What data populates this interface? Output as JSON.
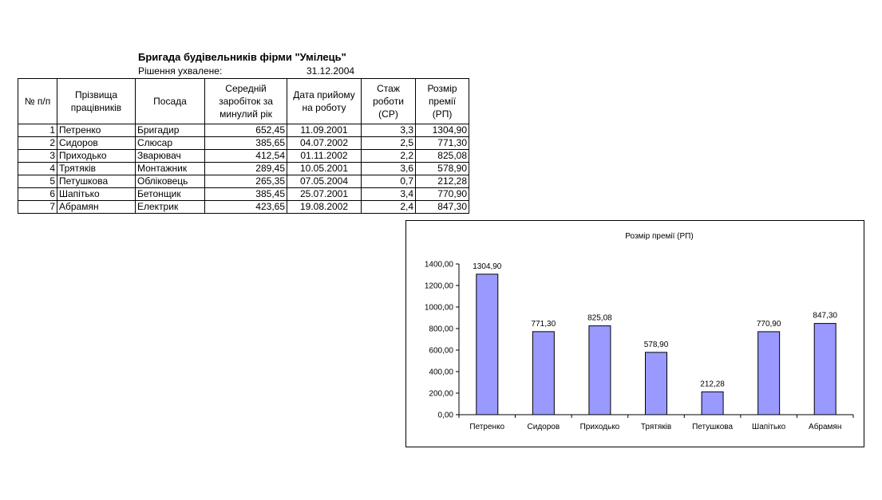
{
  "document": {
    "title": "Бригада будівельників фірми \"Умілець\"",
    "decision_label": "Рішення ухвалене:",
    "decision_date": "31.12.2004"
  },
  "table": {
    "headers": [
      "№ п/п",
      "Прізвища працівників",
      "Посада",
      "Середній заробіток за минулий рік",
      "Дата прийому на роботу",
      "Стаж роботи (СР)",
      "Розмір премії (РП)"
    ],
    "rows": [
      [
        "1",
        "Петренко",
        "Бригадир",
        "652,45",
        "11.09.2001",
        "3,3",
        "1304,90"
      ],
      [
        "2",
        "Сидоров",
        "Слюсар",
        "385,65",
        "04.07.2002",
        "2,5",
        "771,30"
      ],
      [
        "3",
        "Приходько",
        "Зварювач",
        "412,54",
        "01.11.2002",
        "2,2",
        "825,08"
      ],
      [
        "4",
        "Трятяків",
        "Монтажник",
        "289,45",
        "10.05.2001",
        "3,6",
        "578,90"
      ],
      [
        "5",
        "Петушкова",
        "Обліковець",
        "265,35",
        "07.05.2004",
        "0,7",
        "212,28"
      ],
      [
        "6",
        "Шапітько",
        "Бетонщик",
        "385,45",
        "25.07.2001",
        "3,4",
        "770,90"
      ],
      [
        "7",
        "Абрамян",
        "Електрик",
        "423,65",
        "19.08.2002",
        "2,4",
        "847,30"
      ]
    ]
  },
  "chart_data": {
    "type": "bar",
    "title": "Розмір премії (РП)",
    "categories": [
      "Петренко",
      "Сидоров",
      "Приходько",
      "Трятяків",
      "Петушкова",
      "Шапітько",
      "Абрамян"
    ],
    "values": [
      1304.9,
      771.3,
      825.08,
      578.9,
      212.28,
      770.9,
      847.3
    ],
    "data_labels": [
      "1304,90",
      "771,30",
      "825,08",
      "578,90",
      "212,28",
      "770,90",
      "847,30"
    ],
    "ylim": [
      0,
      1400
    ],
    "yticks": [
      0,
      200,
      400,
      600,
      800,
      1000,
      1200,
      1400
    ],
    "ytick_labels": [
      "0,00",
      "200,00",
      "400,00",
      "600,00",
      "800,00",
      "1000,00",
      "1200,00",
      "1400,00"
    ],
    "grid": false,
    "legend": "none",
    "bar_color": "#9999ff"
  }
}
